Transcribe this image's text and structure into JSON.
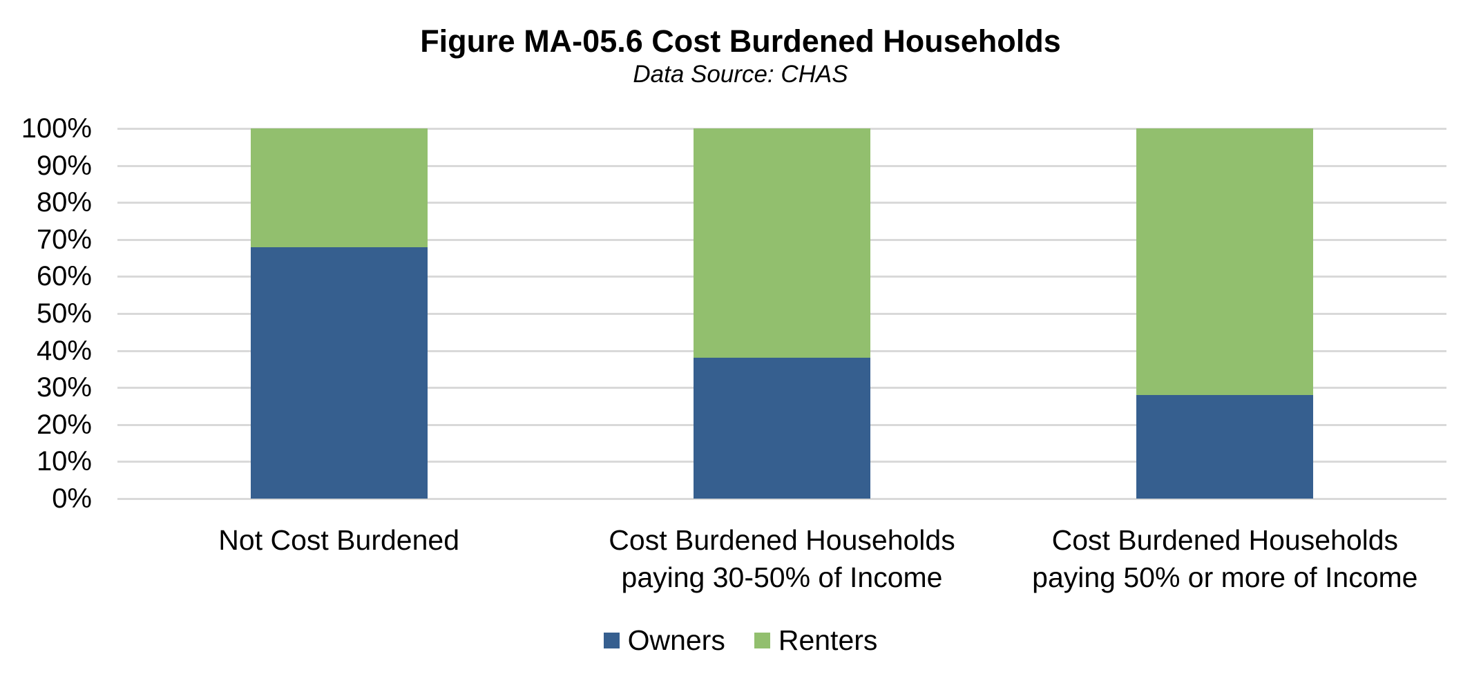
{
  "chart_data": {
    "type": "bar",
    "stacked": true,
    "title": "Figure MA-05.6 Cost Burdened Households",
    "subtitle": "Data Source: CHAS",
    "xlabel": "",
    "ylabel": "",
    "ylim": [
      0,
      100
    ],
    "y_ticks": [
      "0%",
      "10%",
      "20%",
      "30%",
      "40%",
      "50%",
      "60%",
      "70%",
      "80%",
      "90%",
      "100%"
    ],
    "categories": [
      "Not Cost Burdened",
      "Cost Burdened Households\npaying 30-50% of Income",
      "Cost Burdened Households\npaying 50% or more of Income"
    ],
    "series": [
      {
        "name": "Owners",
        "color": "#365f8f",
        "values": [
          68,
          38,
          28
        ]
      },
      {
        "name": "Renters",
        "color": "#92bf6e",
        "values": [
          32,
          62,
          72
        ]
      }
    ],
    "grid": true,
    "legend_position": "bottom"
  }
}
